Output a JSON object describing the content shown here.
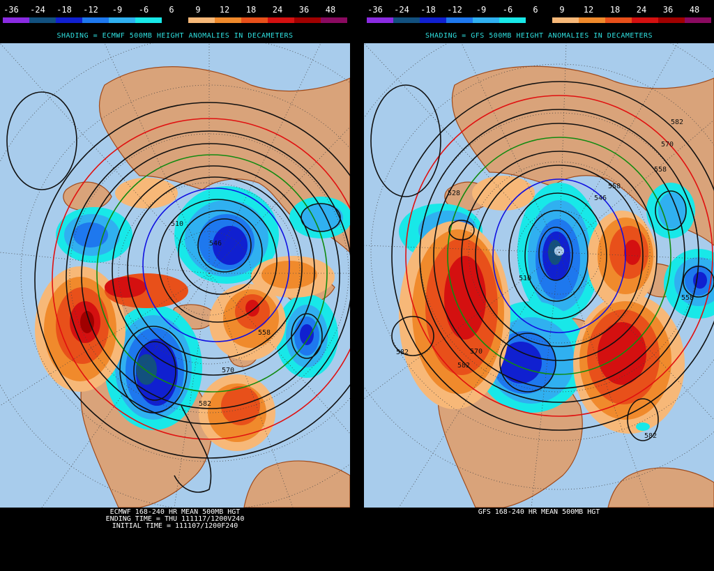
{
  "legend": {
    "labels": [
      "-36",
      "-24",
      "-18",
      "-12",
      "-9",
      "-6",
      "6",
      "9",
      "12",
      "18",
      "24",
      "36",
      "48"
    ],
    "colors": [
      "#8a2be2",
      "#12507e",
      "#1020d0",
      "#1e78ee",
      "#30b0f0",
      "#18e8e8",
      "#000000",
      "#f7b878",
      "#f08a2c",
      "#e8501a",
      "#d41010",
      "#a00000",
      "#8a0a60"
    ]
  },
  "colors": {
    "ocean": "#a8ccec",
    "land": "#d9a37a",
    "coast": "#a04a1a",
    "contour": "#101010",
    "contour_red": "#e01010",
    "contour_green": "#108a10",
    "contour_blue": "#1010e0",
    "header_text": "#2fe0e0"
  },
  "panels": [
    {
      "subtitle": "SHADING = ECMWF 500MB HEIGHT ANOMALIES IN DECAMETERS",
      "contour_labels": [
        "510",
        "546",
        "558",
        "570",
        "582"
      ],
      "caption_lines": [
        "ECMWF 168-240 HR MEAN 500MB HGT",
        "ENDING TIME = THU 111117/1200V240",
        "INITIAL TIME = 111107/1200F240"
      ]
    },
    {
      "subtitle": "SHADING = GFS 500MB HEIGHT ANOMALIES IN DECAMETERS",
      "contour_labels": [
        "582",
        "570",
        "558",
        "558",
        "546",
        "528",
        "510",
        "582",
        "582",
        "570",
        "558",
        "582"
      ],
      "caption_lines": [
        "GFS 168-240 HR MEAN 500MB HGT"
      ]
    }
  ]
}
